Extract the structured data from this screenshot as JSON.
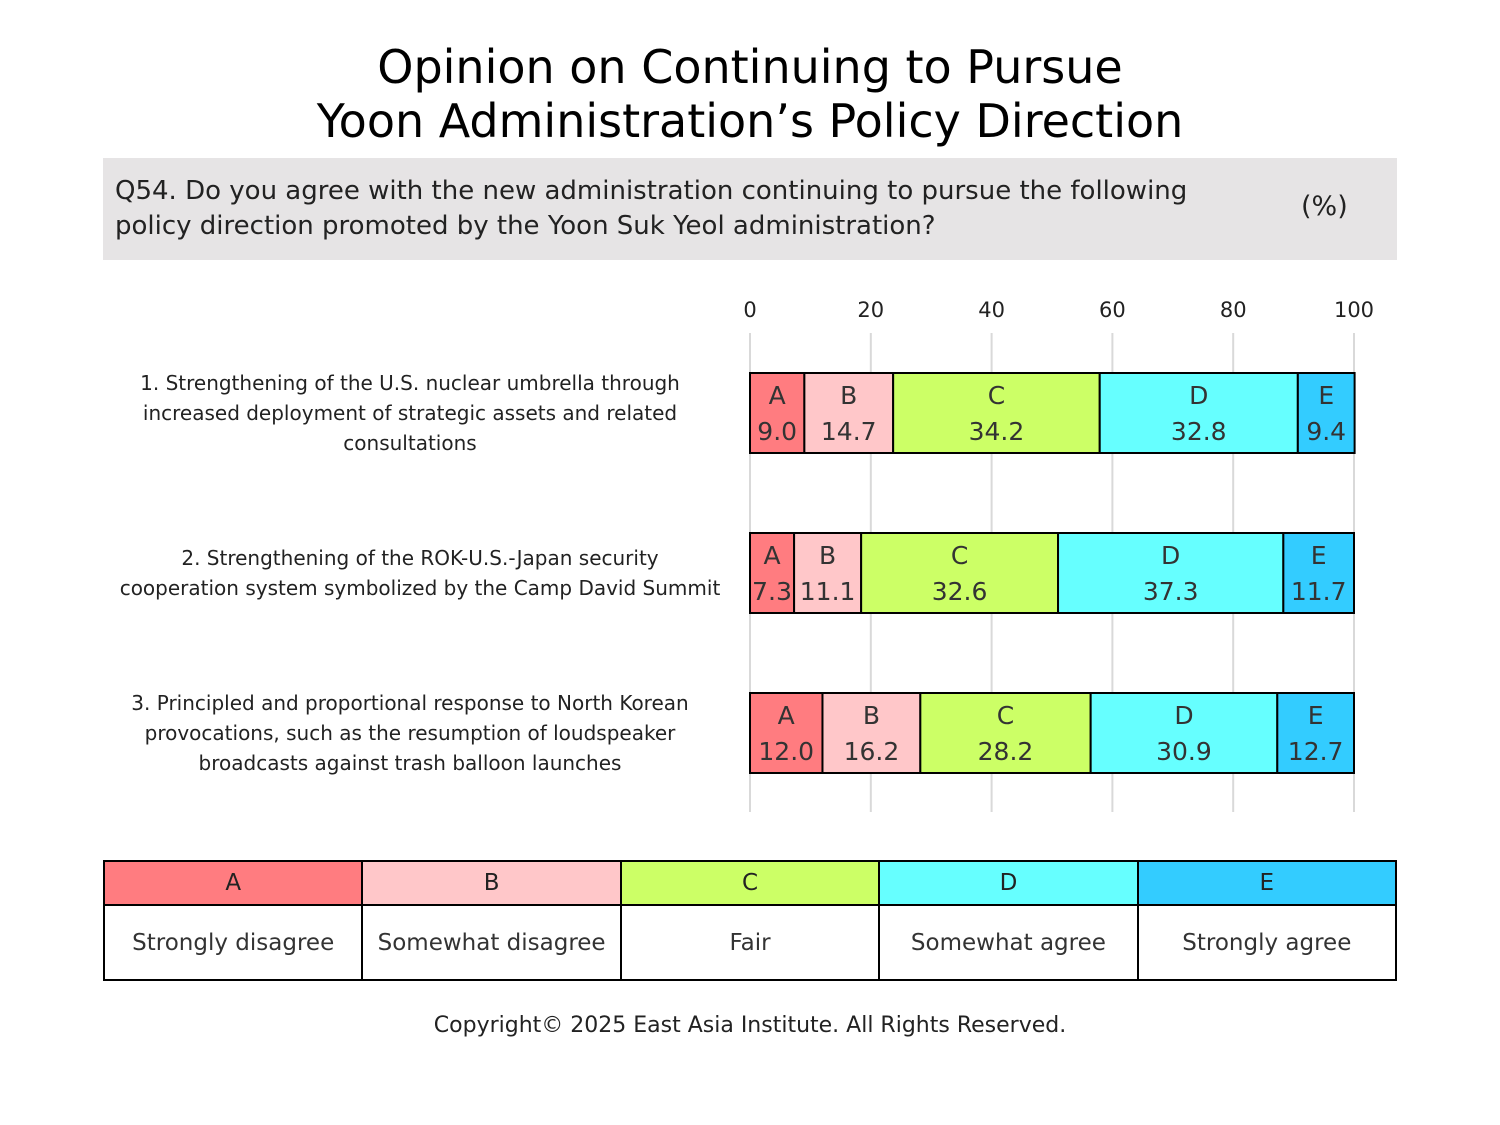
{
  "title_lines": [
    "Opinion on Continuing to Pursue",
    "Yoon Administration’s Policy Direction"
  ],
  "question": {
    "line1": "Q54. Do you agree with the new administration continuing to pursue the following",
    "line2": "policy direction promoted by the Yoon Suk Yeol administration?",
    "unit": "(%)"
  },
  "colors": {
    "A": "#ff7c80",
    "B": "#ffc7c9",
    "C": "#ccff66",
    "D": "#66ffff",
    "E": "#33ccff"
  },
  "legend": [
    {
      "key": "A",
      "label": "Strongly disagree"
    },
    {
      "key": "B",
      "label": "Somewhat disagree"
    },
    {
      "key": "C",
      "label": "Fair"
    },
    {
      "key": "D",
      "label": "Somewhat agree"
    },
    {
      "key": "E",
      "label": "Strongly agree"
    }
  ],
  "chart_data": {
    "type": "bar",
    "orientation": "horizontal",
    "stacked": true,
    "xlim": [
      0,
      100
    ],
    "xticks": [
      "0",
      "20",
      "40",
      "60",
      "80",
      "100"
    ],
    "grid": true,
    "categories": [
      [
        "1. Strengthening of the U.S. nuclear umbrella through",
        "increased deployment of strategic assets and related",
        "consultations"
      ],
      [
        "2. Strengthening of the ROK-U.S.-Japan security",
        "cooperation system symbolized by the Camp David Summit"
      ],
      [
        "3. Principled and proportional response to North Korean",
        "provocations, such as the resumption of loudspeaker",
        "broadcasts against trash balloon launches"
      ]
    ],
    "series": [
      {
        "name": "A",
        "values": [
          9.0,
          7.3,
          12.0
        ]
      },
      {
        "name": "B",
        "values": [
          14.7,
          11.1,
          16.2
        ]
      },
      {
        "name": "C",
        "values": [
          34.2,
          32.6,
          28.2
        ]
      },
      {
        "name": "D",
        "values": [
          32.8,
          37.3,
          30.9
        ]
      },
      {
        "name": "E",
        "values": [
          9.4,
          11.7,
          12.7
        ]
      }
    ]
  },
  "copyright": "Copyright© 2025 East Asia Institute. All Rights Reserved."
}
